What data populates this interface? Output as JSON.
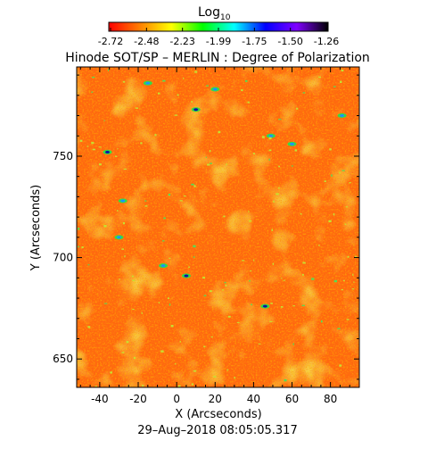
{
  "colorbar": {
    "label": "Log",
    "label_sub": "10",
    "tick_labels": [
      "-2.72",
      "-2.48",
      "-2.23",
      "-1.99",
      "-1.75",
      "-1.50",
      "-1.26"
    ],
    "range": [
      -2.72,
      -1.26
    ],
    "colormap": [
      "#ff0000",
      "#ff8000",
      "#ffff00",
      "#00ff00",
      "#00ffff",
      "#0000ff",
      "#8000ff",
      "#000000"
    ]
  },
  "chart_data": {
    "type": "heatmap",
    "title": "Hinode SOT/SP – MERLIN : Degree of Polarization",
    "xlabel": "X (Arcseconds)",
    "ylabel": "Y (Arcseconds)",
    "xlim": [
      -52,
      95
    ],
    "ylim": [
      636,
      794
    ],
    "xticks": [
      -40,
      -20,
      0,
      20,
      40,
      60,
      80
    ],
    "yticks": [
      650,
      700,
      750
    ],
    "value_scale": "log10",
    "value_range": [
      -2.72,
      -1.26
    ],
    "description_of_field": "mostly orange/red with yellow-green network and scattered blue patches",
    "dark_patches": [
      {
        "x": -36,
        "y": 752
      },
      {
        "x": -28,
        "y": 728
      },
      {
        "x": -30,
        "y": 710
      },
      {
        "x": 5,
        "y": 691
      },
      {
        "x": -7,
        "y": 696
      },
      {
        "x": 60,
        "y": 756
      },
      {
        "x": 10,
        "y": 773
      },
      {
        "x": 49,
        "y": 760
      },
      {
        "x": -15,
        "y": 786
      },
      {
        "x": 46,
        "y": 676
      },
      {
        "x": 86,
        "y": 770
      },
      {
        "x": 20,
        "y": 783
      }
    ]
  },
  "footer": {
    "timestamp": "29–Aug–2018 08:05:05.317"
  }
}
